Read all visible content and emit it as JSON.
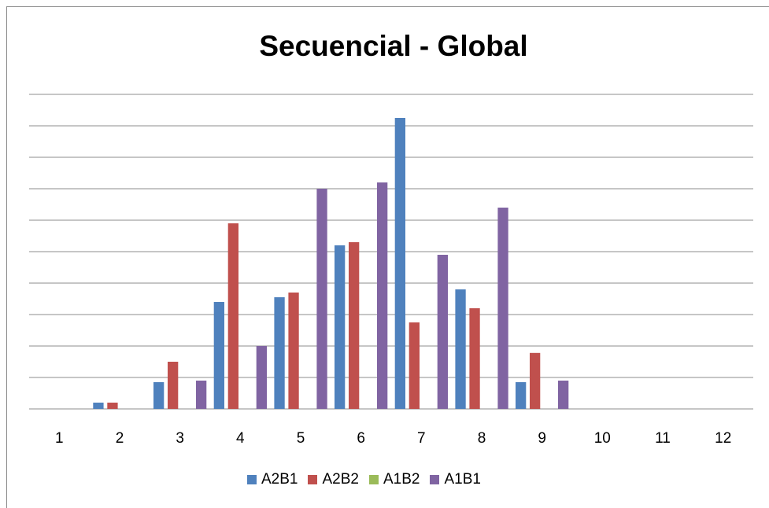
{
  "chart_data": {
    "type": "bar",
    "title": "Secuencial - Global",
    "xlabel": "",
    "ylabel": "",
    "categories": [
      "1",
      "2",
      "3",
      "4",
      "5",
      "6",
      "7",
      "8",
      "9",
      "10",
      "11",
      "12"
    ],
    "ylim": [
      0,
      10
    ],
    "grid": true,
    "legend_position": "bottom",
    "series": [
      {
        "name": "A2B1",
        "color": "#4f81bd",
        "values": [
          0,
          0.2,
          0.85,
          3.4,
          3.55,
          5.2,
          9.25,
          3.8,
          0.85,
          0,
          0,
          0
        ]
      },
      {
        "name": "A2B2",
        "color": "#c0504d",
        "values": [
          0,
          0.2,
          1.5,
          5.9,
          3.7,
          5.3,
          2.75,
          3.2,
          1.78,
          0,
          0,
          0
        ]
      },
      {
        "name": "A1B2",
        "color": "#9bbb59",
        "values": [
          0,
          0,
          0,
          0,
          0,
          0,
          0,
          0,
          0,
          0,
          0,
          0
        ]
      },
      {
        "name": "A1B1",
        "color": "#8064a2",
        "values": [
          0,
          0,
          0.9,
          2.0,
          7.0,
          7.2,
          4.9,
          6.4,
          0.9,
          0,
          0,
          0
        ]
      }
    ]
  }
}
